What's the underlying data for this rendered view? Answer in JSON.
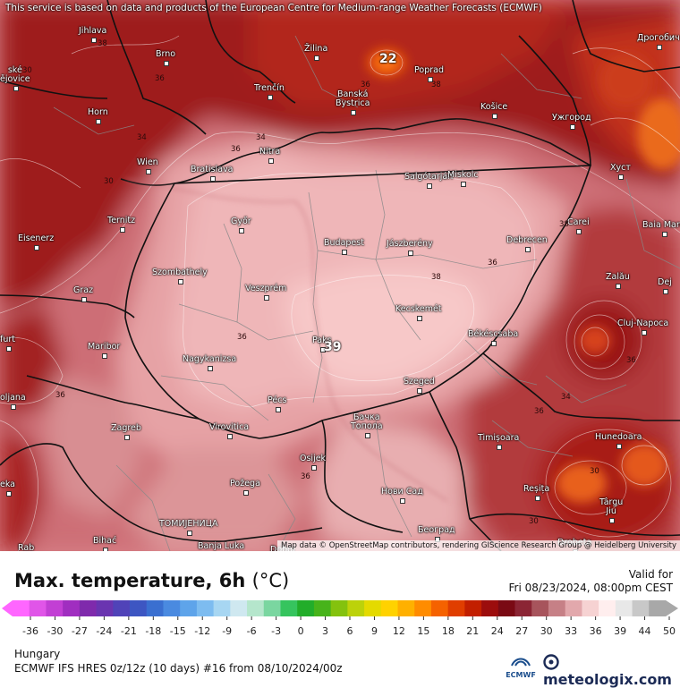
{
  "disclaimer": "This service is based on data and products of the European Centre for Medium-range Weather Forecasts (ECMWF)",
  "map": {
    "attribution": "Map data © OpenStreetMap contributors, rendering GIScience Research Group @ Heidelberg University",
    "cities": [
      {
        "name": "Jihlava"
      },
      {
        "name": "Brno"
      },
      {
        "name": "Žilina"
      },
      {
        "name": "Poprad"
      },
      {
        "name": "Дрогобич"
      },
      {
        "name": "ské\nějovice"
      },
      {
        "name": "Trenčín"
      },
      {
        "name": "Banská\nBystrica"
      },
      {
        "name": "Košice"
      },
      {
        "name": "Ужгород"
      },
      {
        "name": "Horn"
      },
      {
        "name": "Nitra"
      },
      {
        "name": "Wien"
      },
      {
        "name": "Bratislava"
      },
      {
        "name": "Salgótarján"
      },
      {
        "name": "Miskolc"
      },
      {
        "name": "Хуст"
      },
      {
        "name": "Ternitz"
      },
      {
        "name": "Győr"
      },
      {
        "name": "Carei"
      },
      {
        "name": "Baia Mare"
      },
      {
        "name": "Eisenerz"
      },
      {
        "name": "Budapest"
      },
      {
        "name": "Jászberény"
      },
      {
        "name": "Debrecen"
      },
      {
        "name": "Szombathely"
      },
      {
        "name": "Zalău"
      },
      {
        "name": "Graz"
      },
      {
        "name": "Veszprém"
      },
      {
        "name": "Dej"
      },
      {
        "name": "Kecskemét"
      },
      {
        "name": "Cluj-Napoca"
      },
      {
        "name": "furt"
      },
      {
        "name": "Maribor"
      },
      {
        "name": "Paks"
      },
      {
        "name": "Békéscsaba"
      },
      {
        "name": "Nagykanizsa"
      },
      {
        "name": "Szeged"
      },
      {
        "name": "oljana"
      },
      {
        "name": "Pécs"
      },
      {
        "name": "Бачка\nТопола"
      },
      {
        "name": "Zagreb"
      },
      {
        "name": "Virovitica"
      },
      {
        "name": "Timișoara"
      },
      {
        "name": "Hunedoara"
      },
      {
        "name": "Osijek"
      },
      {
        "name": "Požega"
      },
      {
        "name": "Reșița"
      },
      {
        "name": "Нови Сад"
      },
      {
        "name": "eka"
      },
      {
        "name": "Târgu\nJiu"
      },
      {
        "name": "ТОМИЈЕНИЦА"
      },
      {
        "name": "Београд"
      },
      {
        "name": "Rab"
      },
      {
        "name": "Bihać"
      },
      {
        "name": "Banja Luka"
      },
      {
        "name": "Doboj"
      },
      {
        "name": "Drobeta"
      }
    ],
    "contour_labels": [
      {
        "text": "38"
      },
      {
        "text": "36"
      },
      {
        "text": "34"
      },
      {
        "text": "36"
      },
      {
        "text": "34"
      },
      {
        "text": "36"
      },
      {
        "text": "38"
      },
      {
        "text": "36"
      },
      {
        "text": "36"
      },
      {
        "text": "38"
      },
      {
        "text": "34"
      },
      {
        "text": "36"
      },
      {
        "text": "36"
      },
      {
        "text": "36"
      },
      {
        "text": "30"
      },
      {
        "text": "30"
      },
      {
        "text": "30"
      },
      {
        "text": "36"
      },
      {
        "text": "30"
      },
      {
        "text": "38"
      }
    ],
    "max_labels": [
      {
        "text": "22"
      },
      {
        "text": "39"
      }
    ]
  },
  "title": {
    "main": "Max. temperature, 6h",
    "unit": "(°C)"
  },
  "valid": {
    "label": "Valid for",
    "value": "Fri 08/23/2024, 08:00pm CEST"
  },
  "legend": {
    "ticks": [
      "-36",
      "-30",
      "-27",
      "-24",
      "-21",
      "-18",
      "-15",
      "-12",
      "-9",
      "-6",
      "-3",
      "0",
      "3",
      "6",
      "9",
      "12",
      "15",
      "18",
      "21",
      "24",
      "27",
      "30",
      "33",
      "36",
      "39",
      "44",
      "50"
    ],
    "colors": [
      "#ff66ff",
      "#e055e8",
      "#c23fd4",
      "#a02ec0",
      "#7f2aac",
      "#6a34b0",
      "#5043b8",
      "#3d56c2",
      "#3a6fd0",
      "#4a8ae0",
      "#5ea4ea",
      "#7dbcf0",
      "#a7d6f2",
      "#cfe8f0",
      "#b5e6cc",
      "#7ad6a0",
      "#36c45e",
      "#22ad2a",
      "#47b31a",
      "#84c20e",
      "#bcd20a",
      "#e4da00",
      "#ffd200",
      "#ffb000",
      "#ff8c00",
      "#f56200",
      "#e03e00",
      "#c21f00",
      "#9c0d0d",
      "#7a0a14",
      "#8b2534",
      "#a7545c",
      "#c68086",
      "#e2a8ac",
      "#f6d2d2",
      "#ffeeee",
      "#e8e8e8",
      "#c8c8c8",
      "#a8a8a8"
    ]
  },
  "region": "Hungary",
  "model": "ECMWF IFS HRES 0z/12z (10 days) #16 from  08/10/2024/00z",
  "ecmwf_logo": "ECMWF",
  "brand": "meteologix.com",
  "brand_icon": "meteologix-logo-icon"
}
